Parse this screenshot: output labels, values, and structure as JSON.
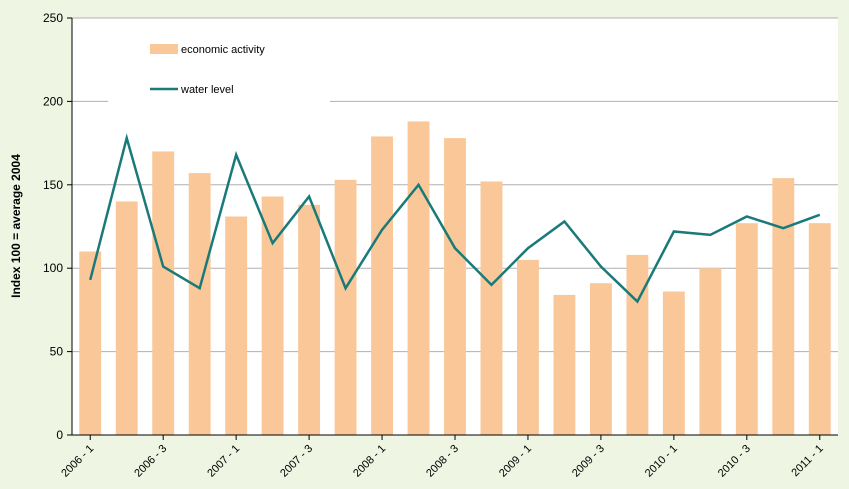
{
  "chart_data": {
    "type": "bar_line",
    "y_label": "Index 100 = average 2004",
    "categories": [
      "2006 - 1",
      null,
      "2006 - 3",
      null,
      "2007 - 1",
      null,
      "2007 - 3",
      null,
      "2008 - 1",
      null,
      "2008 - 3",
      null,
      "2009 - 1",
      null,
      "2009 - 3",
      null,
      "2010 - 1",
      null,
      "2010 - 3",
      null,
      "2011 - 1"
    ],
    "series": [
      {
        "name": "economic activity",
        "type": "bar",
        "color": "#fac898",
        "values": [
          110,
          140,
          170,
          157,
          131,
          143,
          138,
          153,
          179,
          188,
          178,
          152,
          105,
          84,
          91,
          108,
          86,
          100,
          127,
          154,
          127
        ]
      },
      {
        "name": "water level",
        "type": "line",
        "color": "#1a7a7a",
        "values": [
          93,
          178,
          101,
          88,
          168,
          115,
          143,
          88,
          123,
          150,
          112,
          90,
          112,
          128,
          101,
          80,
          122,
          120,
          131,
          124,
          132
        ]
      }
    ],
    "ylim": [
      0,
      250
    ],
    "yticks": [
      0,
      50,
      100,
      150,
      200,
      250
    ],
    "grid": true,
    "legend": "top-left"
  }
}
